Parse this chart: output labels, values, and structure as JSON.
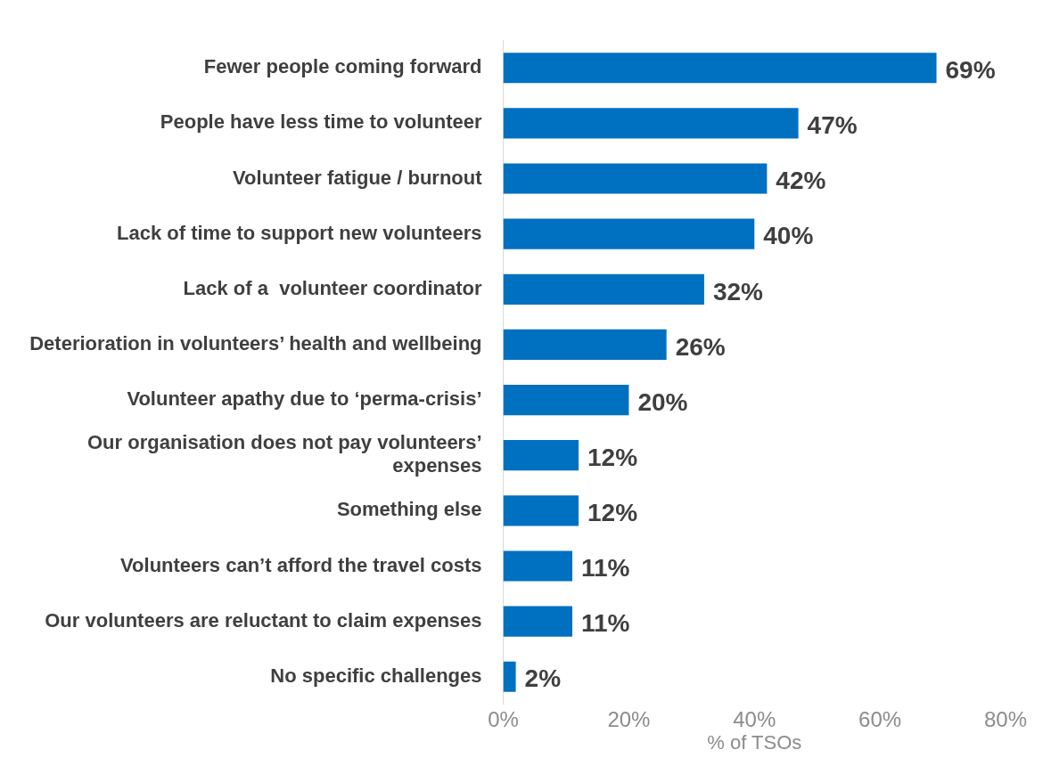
{
  "chart_data": {
    "type": "bar",
    "orientation": "horizontal",
    "xlabel": "% of TSOs",
    "categories": [
      "Fewer people coming forward",
      "People have less time to volunteer",
      "Volunteer fatigue / burnout",
      "Lack of time to support new volunteers",
      "Lack of a  volunteer coordinator",
      "Deterioration in volunteers’ health and wellbeing",
      "Volunteer apathy due to ‘perma-crisis’",
      "Our organisation does not pay volunteers’ expenses",
      "Something else",
      "Volunteers can’t afford the travel costs",
      "Our volunteers are reluctant to claim expenses",
      "No specific challenges"
    ],
    "values": [
      69,
      47,
      42,
      40,
      32,
      26,
      20,
      12,
      12,
      11,
      11,
      2
    ],
    "value_labels": [
      "69%",
      "47%",
      "42%",
      "40%",
      "32%",
      "26%",
      "20%",
      "12%",
      "12%",
      "11%",
      "11%",
      "2%"
    ],
    "color": "#0070c0",
    "xlim": [
      0,
      80
    ],
    "xticks": [
      {
        "value": 0,
        "label": "0%"
      },
      {
        "value": 20,
        "label": "20%"
      },
      {
        "value": 40,
        "label": "40%"
      },
      {
        "value": 60,
        "label": "60%"
      },
      {
        "value": 80,
        "label": "80%"
      }
    ],
    "grid": false,
    "legend": false
  }
}
